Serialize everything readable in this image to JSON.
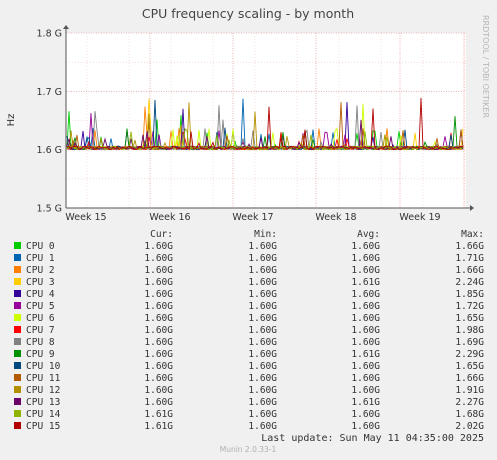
{
  "colors": {
    "background": "#f0f0f0",
    "plot_background": "#ffffff",
    "grid_major": "#e4a0a0",
    "grid_minor": "#e9c5c5",
    "axis": "#555555"
  },
  "chart_data": {
    "type": "line",
    "title": "CPU frequency scaling - by month",
    "ylabel": "Hz",
    "ylim": [
      1.5,
      1.8
    ],
    "y_ticks": [
      {
        "value": 1.5,
        "label": "1.5 G"
      },
      {
        "value": 1.6,
        "label": "1.6 G"
      },
      {
        "value": 1.7,
        "label": "1.7 G"
      },
      {
        "value": 1.8,
        "label": "1.8 G"
      }
    ],
    "x_ticks": [
      "Week 15",
      "Week 16",
      "Week 17",
      "Week 18",
      "Week 19"
    ],
    "side_label": "RRDTOOL / TOBI OETIKER",
    "columns": {
      "cur": "Cur:",
      "min": "Min:",
      "avg": "Avg:",
      "max": "Max:"
    },
    "series": [
      {
        "name": "CPU 0",
        "color": "#00cc00",
        "cur": "1.60G",
        "min": "1.60G",
        "avg": "1.60G",
        "max": "1.66G"
      },
      {
        "name": "CPU 1",
        "color": "#0066b3",
        "cur": "1.60G",
        "min": "1.60G",
        "avg": "1.60G",
        "max": "1.71G"
      },
      {
        "name": "CPU 2",
        "color": "#ff8000",
        "cur": "1.60G",
        "min": "1.60G",
        "avg": "1.60G",
        "max": "1.66G"
      },
      {
        "name": "CPU 3",
        "color": "#ffcc00",
        "cur": "1.60G",
        "min": "1.60G",
        "avg": "1.61G",
        "max": "2.24G"
      },
      {
        "name": "CPU 4",
        "color": "#330099",
        "cur": "1.60G",
        "min": "1.60G",
        "avg": "1.60G",
        "max": "1.85G"
      },
      {
        "name": "CPU 5",
        "color": "#990099",
        "cur": "1.60G",
        "min": "1.60G",
        "avg": "1.60G",
        "max": "1.72G"
      },
      {
        "name": "CPU 6",
        "color": "#ccff00",
        "cur": "1.60G",
        "min": "1.60G",
        "avg": "1.60G",
        "max": "1.65G"
      },
      {
        "name": "CPU 7",
        "color": "#ff0000",
        "cur": "1.60G",
        "min": "1.60G",
        "avg": "1.60G",
        "max": "1.98G"
      },
      {
        "name": "CPU 8",
        "color": "#808080",
        "cur": "1.60G",
        "min": "1.60G",
        "avg": "1.60G",
        "max": "1.69G"
      },
      {
        "name": "CPU 9",
        "color": "#008f00",
        "cur": "1.60G",
        "min": "1.60G",
        "avg": "1.61G",
        "max": "2.29G"
      },
      {
        "name": "CPU 10",
        "color": "#00487d",
        "cur": "1.60G",
        "min": "1.60G",
        "avg": "1.60G",
        "max": "1.65G"
      },
      {
        "name": "CPU 11",
        "color": "#b35a00",
        "cur": "1.60G",
        "min": "1.60G",
        "avg": "1.60G",
        "max": "1.66G"
      },
      {
        "name": "CPU 12",
        "color": "#b38f00",
        "cur": "1.60G",
        "min": "1.60G",
        "avg": "1.60G",
        "max": "1.91G"
      },
      {
        "name": "CPU 13",
        "color": "#6b006b",
        "cur": "1.60G",
        "min": "1.60G",
        "avg": "1.61G",
        "max": "2.27G"
      },
      {
        "name": "CPU 14",
        "color": "#8fb300",
        "cur": "1.61G",
        "min": "1.60G",
        "avg": "1.60G",
        "max": "1.68G"
      },
      {
        "name": "CPU 15",
        "color": "#b30000",
        "cur": "1.61G",
        "min": "1.60G",
        "avg": "1.60G",
        "max": "2.02G"
      }
    ],
    "last_update": "Last update:  Sun May 11 04:35:00 2025",
    "footer": "Munin 2.0.33-1"
  }
}
